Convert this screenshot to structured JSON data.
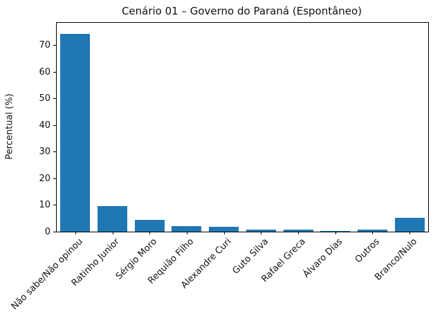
{
  "chart_data": {
    "type": "bar",
    "title": "Cenário 01 – Governo do Paraná (Espontâneo)",
    "xlabel": "",
    "ylabel": "Percentual (%)",
    "categories": [
      "Não sabe/Não opinou",
      "Ratinho Junior",
      "Sérgio Moro",
      "Requião Filho",
      "Alexandre Curi",
      "Guto Silva",
      "Rafael Greca",
      "Álvaro Dias",
      "Outros",
      "Branco/Nulo"
    ],
    "values": [
      74.3,
      9.5,
      4.4,
      2.1,
      1.7,
      0.9,
      0.8,
      0.3,
      0.8,
      5.2
    ],
    "ylim": [
      0,
      78.5
    ],
    "yticks": [
      0,
      10,
      20,
      30,
      40,
      50,
      60,
      70
    ],
    "bar_color": "#1f77b4",
    "grid": false,
    "legend_position": "none",
    "x_tick_rotation_deg": 45
  }
}
